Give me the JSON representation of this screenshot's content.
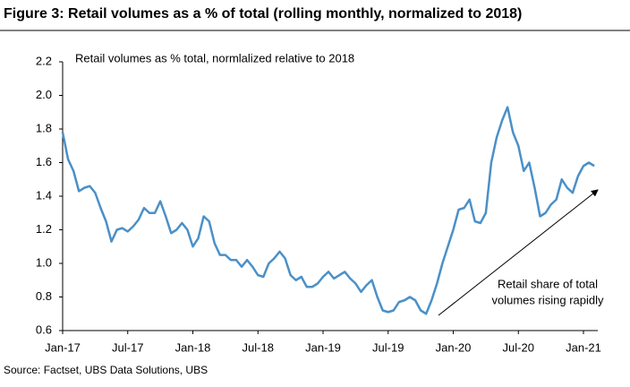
{
  "chart_data": {
    "type": "line",
    "title": "Figure 3: Retail volumes as a % of total (rolling monthly, normalized to 2018)",
    "subtitle": "Retail volumes as % total, normlalized relative to 2018",
    "source": "Source:  Factset, UBS Data Solutions, UBS",
    "annotation": [
      "Retail share of total",
      "volumes rising rapidly"
    ],
    "categories": [
      "Jan-17",
      null,
      null,
      null,
      null,
      null,
      null,
      null,
      null,
      null,
      null,
      null,
      "Jul-17",
      null,
      null,
      null,
      null,
      null,
      null,
      null,
      null,
      null,
      null,
      null,
      "Jan-18",
      null,
      null,
      null,
      null,
      null,
      null,
      null,
      null,
      null,
      null,
      null,
      "Jul-18",
      null,
      null,
      null,
      null,
      null,
      null,
      null,
      null,
      null,
      null,
      null,
      "Jan-19",
      null,
      null,
      null,
      null,
      null,
      null,
      null,
      null,
      null,
      null,
      null,
      "Jul-19",
      null,
      null,
      null,
      null,
      null,
      null,
      null,
      null,
      null,
      null,
      null,
      "Jan-20",
      null,
      null,
      null,
      null,
      null,
      null,
      null,
      null,
      null,
      null,
      null,
      "Jul-20",
      null,
      null,
      null,
      null,
      null,
      null,
      null,
      null,
      null,
      null,
      null,
      "Jan-21",
      null,
      null
    ],
    "series": [
      {
        "name": "Retail volumes as % total",
        "color": "#4a90c8",
        "values": [
          1.78,
          1.62,
          1.55,
          1.43,
          1.45,
          1.46,
          1.42,
          1.33,
          1.25,
          1.13,
          1.2,
          1.21,
          1.19,
          1.22,
          1.26,
          1.33,
          1.3,
          1.3,
          1.37,
          1.28,
          1.18,
          1.2,
          1.24,
          1.2,
          1.1,
          1.15,
          1.28,
          1.25,
          1.12,
          1.05,
          1.05,
          1.02,
          1.02,
          0.98,
          1.02,
          0.98,
          0.93,
          0.92,
          1.0,
          1.03,
          1.07,
          1.03,
          0.93,
          0.9,
          0.92,
          0.86,
          0.86,
          0.88,
          0.92,
          0.95,
          0.91,
          0.93,
          0.95,
          0.91,
          0.88,
          0.83,
          0.87,
          0.9,
          0.8,
          0.72,
          0.71,
          0.72,
          0.77,
          0.78,
          0.8,
          0.78,
          0.72,
          0.7,
          0.78,
          0.88,
          1.0,
          1.1,
          1.2,
          1.32,
          1.33,
          1.38,
          1.25,
          1.24,
          1.3,
          1.6,
          1.75,
          1.85,
          1.93,
          1.78,
          1.7,
          1.55,
          1.6,
          1.45,
          1.28,
          1.3,
          1.35,
          1.38,
          1.5,
          1.45,
          1.42,
          1.52,
          1.58,
          1.6,
          1.58
        ]
      }
    ],
    "ylim": [
      0.6,
      2.2
    ],
    "yticks": [
      {
        "value": 0.6,
        "label": "0.6"
      },
      {
        "value": 0.8,
        "label": "0.8"
      },
      {
        "value": 1.0,
        "label": "1.0"
      },
      {
        "value": 1.2,
        "label": "1.2"
      },
      {
        "value": 1.4,
        "label": "1.4"
      },
      {
        "value": 1.6,
        "label": "1.6"
      },
      {
        "value": 1.8,
        "label": "1.8"
      },
      {
        "value": 2.0,
        "label": "2.0"
      },
      {
        "value": 2.2,
        "label": "2.2"
      }
    ],
    "grid": false
  }
}
